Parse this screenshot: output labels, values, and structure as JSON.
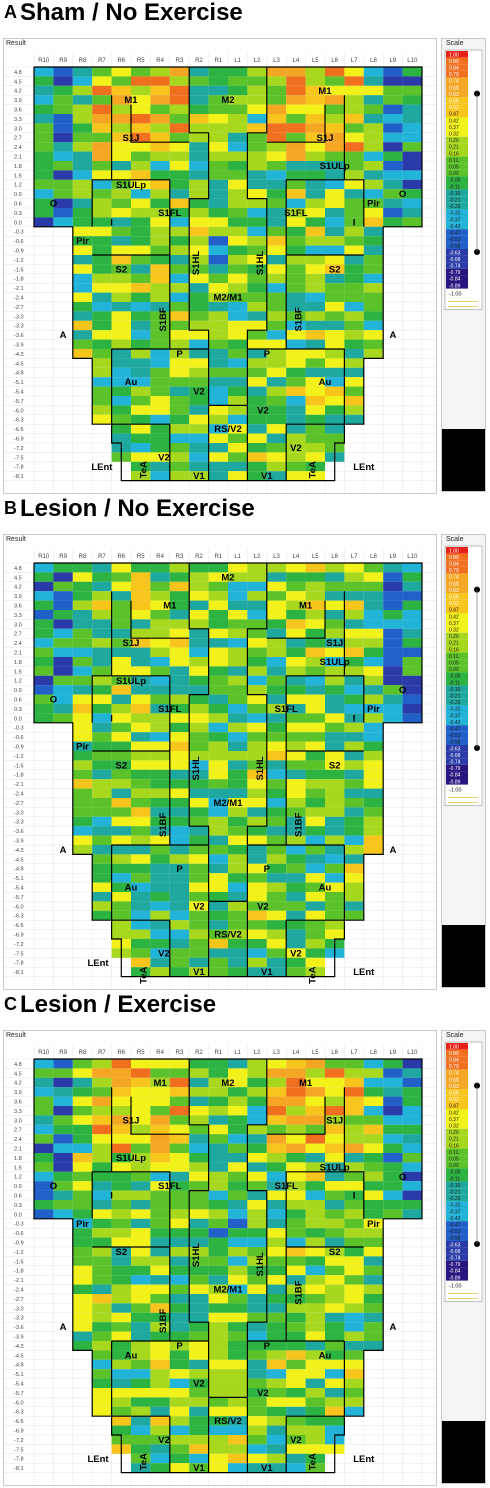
{
  "result_label": "Result",
  "scale_label": "Scale",
  "columns": [
    "R10",
    "R9",
    "R8",
    "R7",
    "R6",
    "R5",
    "R4",
    "R3",
    "R2",
    "R1",
    "L1",
    "L2",
    "L3",
    "L4",
    "L5",
    "L6",
    "L7",
    "L8",
    "L9",
    "L10"
  ],
  "rows": [
    "4.8",
    "4.5",
    "4.2",
    "3.9",
    "3.6",
    "3.3",
    "3.0",
    "2.7",
    "2.4",
    "2.1",
    "1.8",
    "1.5",
    "1.2",
    "0.9",
    "0.6",
    "0.3",
    "0.0",
    "-0.3",
    "-0.6",
    "-0.9",
    "-1.2",
    "-1.5",
    "-1.8",
    "-2.1",
    "-2.4",
    "-2.7",
    "-3.0",
    "-3.3",
    "-3.6",
    "-3.9",
    "-4.2",
    "-4.5",
    "-4.8",
    "-5.1",
    "-5.4",
    "-5.7",
    "-6.0",
    "-6.3",
    "-6.6",
    "-6.9",
    "-7.2",
    "-7.5",
    "-7.8",
    "-8.1"
  ],
  "scale": {
    "values": [
      "1.00",
      "0.89",
      "0.84",
      "0.79",
      "0.74",
      "0.68",
      "0.63",
      "0.58",
      "0.53",
      "0.47",
      "0.42",
      "0.37",
      "0.32",
      "0.26",
      "0.21",
      "0.16",
      "0.11",
      "0.05",
      "0.00",
      "-0.05",
      "-0.11",
      "-0.16",
      "-0.21",
      "-0.26",
      "-0.32",
      "-0.37",
      "-0.42",
      "-0.47",
      "-0.53",
      "-0.58",
      "-0.63",
      "-0.68",
      "-0.74",
      "-0.79",
      "-0.84",
      "-0.89"
    ],
    "min_label": "-1.00",
    "colors": {
      "high": "#e8201a",
      "orange": "#f5a623",
      "yellow": "#f2f21a",
      "green": "#2db342",
      "cyan": "#22b3d9",
      "blue": "#2a3aa8",
      "indigo": "#2a1580",
      "low": "#7a4ab0"
    }
  },
  "chart_data": [
    {
      "type": "heatmap",
      "panel": "A",
      "title": "Sham / No Exercise",
      "x": [
        "R10",
        "R9",
        "R8",
        "R7",
        "R6",
        "R5",
        "R4",
        "R3",
        "R2",
        "R1",
        "L1",
        "L2",
        "L3",
        "L4",
        "L5",
        "L6",
        "L7",
        "L8",
        "L9",
        "L10"
      ],
      "y_range": [
        4.8,
        -8.1
      ],
      "value_range": [
        -1.0,
        1.0
      ],
      "regions": [
        {
          "label": "M1",
          "x": 5,
          "y": 3.9
        },
        {
          "label": "M2",
          "x": 10,
          "y": 3.9
        },
        {
          "label": "M1",
          "x": 15,
          "y": 4.2
        },
        {
          "label": "S1J",
          "x": 5,
          "y": 2.7
        },
        {
          "label": "S1J",
          "x": 15,
          "y": 2.7
        },
        {
          "label": "S1ULp",
          "x": 5,
          "y": 1.2
        },
        {
          "label": "S1ULp",
          "x": 15.5,
          "y": 1.8
        },
        {
          "label": "S1FL",
          "x": 7,
          "y": 0.3
        },
        {
          "label": "S1FL",
          "x": 13.5,
          "y": 0.3
        },
        {
          "label": "O",
          "x": 1,
          "y": 0.6
        },
        {
          "label": "O",
          "x": 19,
          "y": 0.9
        },
        {
          "label": "I",
          "x": 4,
          "y": -0.0
        },
        {
          "label": "I",
          "x": 16.5,
          "y": -0.0
        },
        {
          "label": "Pir",
          "x": 2.5,
          "y": -0.6
        },
        {
          "label": "Pir",
          "x": 17.5,
          "y": 0.6
        },
        {
          "label": "S2",
          "x": 4.5,
          "y": -1.5
        },
        {
          "label": "S2",
          "x": 15.5,
          "y": -1.5
        },
        {
          "label": "S1HL",
          "x": 8.5,
          "y": -1.2
        },
        {
          "label": "S1HL",
          "x": 11.8,
          "y": -1.2
        },
        {
          "label": "M2/M1",
          "x": 10,
          "y": -2.4
        },
        {
          "label": "S1BF",
          "x": 6.8,
          "y": -3.0
        },
        {
          "label": "S1BF",
          "x": 13.8,
          "y": -3.0
        },
        {
          "label": "A",
          "x": 1.5,
          "y": -3.6
        },
        {
          "label": "A",
          "x": 18.5,
          "y": -3.6
        },
        {
          "label": "P",
          "x": 7.5,
          "y": -4.2
        },
        {
          "label": "P",
          "x": 12,
          "y": -4.2
        },
        {
          "label": "Au",
          "x": 5,
          "y": -5.1
        },
        {
          "label": "Au",
          "x": 15,
          "y": -5.1
        },
        {
          "label": "V2",
          "x": 8.5,
          "y": -5.4
        },
        {
          "label": "V2",
          "x": 11.8,
          "y": -6.0
        },
        {
          "label": "RS/V2",
          "x": 10,
          "y": -6.6
        },
        {
          "label": "V2",
          "x": 6.7,
          "y": -7.5
        },
        {
          "label": "V2",
          "x": 13.5,
          "y": -7.2
        },
        {
          "label": "LEnt",
          "x": 3.5,
          "y": -7.8
        },
        {
          "label": "LEnt",
          "x": 17,
          "y": -7.8
        },
        {
          "label": "TeA",
          "x": 5.8,
          "y": -7.8
        },
        {
          "label": "TeA",
          "x": 14.5,
          "y": -7.8
        },
        {
          "label": "V1",
          "x": 8.5,
          "y": -8.1
        },
        {
          "label": "V1",
          "x": 12,
          "y": -8.1
        }
      ]
    },
    {
      "type": "heatmap",
      "panel": "B",
      "title": "Lesion / No Exercise",
      "x": [
        "R10",
        "R9",
        "R8",
        "R7",
        "R6",
        "R5",
        "R4",
        "R3",
        "R2",
        "R1",
        "L1",
        "L2",
        "L3",
        "L4",
        "L5",
        "L6",
        "L7",
        "L8",
        "L9",
        "L10"
      ],
      "y_range": [
        4.8,
        -8.1
      ],
      "value_range": [
        -1.0,
        1.0
      ],
      "regions": [
        {
          "label": "M2",
          "x": 10,
          "y": 4.5
        },
        {
          "label": "M1",
          "x": 7,
          "y": 3.6
        },
        {
          "label": "M1",
          "x": 14,
          "y": 3.6
        },
        {
          "label": "S1J",
          "x": 5,
          "y": 2.4
        },
        {
          "label": "S1J",
          "x": 15.5,
          "y": 2.4
        },
        {
          "label": "S1ULp",
          "x": 5,
          "y": 1.2
        },
        {
          "label": "S1ULp",
          "x": 15.5,
          "y": 1.8
        },
        {
          "label": "S1FL",
          "x": 7,
          "y": 0.3
        },
        {
          "label": "S1FL",
          "x": 13,
          "y": 0.3
        },
        {
          "label": "O",
          "x": 1,
          "y": 0.6
        },
        {
          "label": "O",
          "x": 19,
          "y": 0.9
        },
        {
          "label": "I",
          "x": 4,
          "y": 0.0
        },
        {
          "label": "I",
          "x": 16.5,
          "y": 0.0
        },
        {
          "label": "Pir",
          "x": 2.5,
          "y": -0.9
        },
        {
          "label": "Pir",
          "x": 17.5,
          "y": 0.3
        },
        {
          "label": "S2",
          "x": 4.5,
          "y": -1.5
        },
        {
          "label": "S2",
          "x": 15.5,
          "y": -1.5
        },
        {
          "label": "S1HL",
          "x": 8.5,
          "y": -1.5
        },
        {
          "label": "S1HL",
          "x": 11.8,
          "y": -1.5
        },
        {
          "label": "M2/M1",
          "x": 10,
          "y": -2.7
        },
        {
          "label": "S1BF",
          "x": 6.8,
          "y": -3.3
        },
        {
          "label": "S1BF",
          "x": 13.8,
          "y": -3.3
        },
        {
          "label": "A",
          "x": 1.5,
          "y": -4.2
        },
        {
          "label": "A",
          "x": 18.5,
          "y": -4.2
        },
        {
          "label": "P",
          "x": 7.5,
          "y": -4.8
        },
        {
          "label": "P",
          "x": 12,
          "y": -4.8
        },
        {
          "label": "Au",
          "x": 5,
          "y": -5.4
        },
        {
          "label": "Au",
          "x": 15,
          "y": -5.4
        },
        {
          "label": "V2",
          "x": 8.5,
          "y": -6.0
        },
        {
          "label": "V2",
          "x": 11.8,
          "y": -6.0
        },
        {
          "label": "RS/V2",
          "x": 10,
          "y": -6.9
        },
        {
          "label": "V2",
          "x": 6.7,
          "y": -7.5
        },
        {
          "label": "V2",
          "x": 13.5,
          "y": -7.5
        },
        {
          "label": "LEnt",
          "x": 3.3,
          "y": -7.8
        },
        {
          "label": "LEnt",
          "x": 17,
          "y": -8.1
        },
        {
          "label": "TeA",
          "x": 5.8,
          "y": -8.1
        },
        {
          "label": "TeA",
          "x": 14.5,
          "y": -8.1
        },
        {
          "label": "V1",
          "x": 8.5,
          "y": -8.1
        },
        {
          "label": "V1",
          "x": 12,
          "y": -8.1
        }
      ]
    },
    {
      "type": "heatmap",
      "panel": "C",
      "title": "Lesion / Exercise",
      "x": [
        "R10",
        "R9",
        "R8",
        "R7",
        "R6",
        "R5",
        "R4",
        "R3",
        "R2",
        "R1",
        "L1",
        "L2",
        "L3",
        "L4",
        "L5",
        "L6",
        "L7",
        "L8",
        "L9",
        "L10"
      ],
      "y_range": [
        4.8,
        -8.1
      ],
      "value_range": [
        -1.0,
        1.0
      ],
      "regions": [
        {
          "label": "M1",
          "x": 6.5,
          "y": 4.2
        },
        {
          "label": "M2",
          "x": 10,
          "y": 4.2
        },
        {
          "label": "M1",
          "x": 14,
          "y": 4.2
        },
        {
          "label": "S1J",
          "x": 5,
          "y": 3.0
        },
        {
          "label": "S1J",
          "x": 15.5,
          "y": 3.0
        },
        {
          "label": "S1ULp",
          "x": 5,
          "y": 1.8
        },
        {
          "label": "S1ULp",
          "x": 15.5,
          "y": 1.5
        },
        {
          "label": "S1FL",
          "x": 7,
          "y": 0.9
        },
        {
          "label": "S1FL",
          "x": 13,
          "y": 0.9
        },
        {
          "label": "O",
          "x": 1,
          "y": 0.9
        },
        {
          "label": "O",
          "x": 19,
          "y": 1.2
        },
        {
          "label": "I",
          "x": 4,
          "y": 0.6
        },
        {
          "label": "I",
          "x": 16.5,
          "y": 0.6
        },
        {
          "label": "Pir",
          "x": 2.5,
          "y": -0.3
        },
        {
          "label": "Pir",
          "x": 17.5,
          "y": -0.3
        },
        {
          "label": "S2",
          "x": 4.5,
          "y": -1.2
        },
        {
          "label": "S2",
          "x": 15.5,
          "y": -1.2
        },
        {
          "label": "S1HL",
          "x": 8.5,
          "y": -1.2
        },
        {
          "label": "S1HL",
          "x": 11.8,
          "y": -1.5
        },
        {
          "label": "M2/M1",
          "x": 10,
          "y": -2.4
        },
        {
          "label": "S1BF",
          "x": 6.8,
          "y": -3.3
        },
        {
          "label": "S1BF",
          "x": 13.8,
          "y": -2.4
        },
        {
          "label": "A",
          "x": 1.5,
          "y": -3.6
        },
        {
          "label": "A",
          "x": 18.5,
          "y": -3.6
        },
        {
          "label": "P",
          "x": 7.5,
          "y": -4.2
        },
        {
          "label": "P",
          "x": 12,
          "y": -4.2
        },
        {
          "label": "Au",
          "x": 5,
          "y": -4.5
        },
        {
          "label": "Au",
          "x": 15,
          "y": -4.5
        },
        {
          "label": "V2",
          "x": 8.5,
          "y": -5.4
        },
        {
          "label": "V2",
          "x": 11.8,
          "y": -5.7
        },
        {
          "label": "RS/V2",
          "x": 10,
          "y": -6.6
        },
        {
          "label": "V2",
          "x": 6.7,
          "y": -7.2
        },
        {
          "label": "V2",
          "x": 13.5,
          "y": -7.2
        },
        {
          "label": "LEnt",
          "x": 3.3,
          "y": -7.8
        },
        {
          "label": "LEnt",
          "x": 17,
          "y": -7.8
        },
        {
          "label": "TeA",
          "x": 5.8,
          "y": -7.8
        },
        {
          "label": "TeA",
          "x": 14.5,
          "y": -7.8
        },
        {
          "label": "V1",
          "x": 8.5,
          "y": -8.1
        },
        {
          "label": "V1",
          "x": 12,
          "y": -8.1
        }
      ]
    }
  ]
}
